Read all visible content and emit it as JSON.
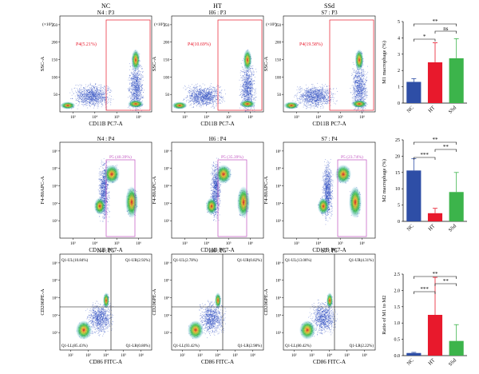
{
  "group_headers": [
    "NC",
    "HT",
    "SSd"
  ],
  "flow_rows": [
    {
      "row": "P3",
      "panels": [
        {
          "title": "N4 : P3",
          "gate_label": "P4(5.21%)"
        },
        {
          "title": "H6 : P3",
          "gate_label": "P4(10.69%)"
        },
        {
          "title": "S7 : P3",
          "gate_label": "P4(19.58%)"
        }
      ],
      "xlabel": "CD11B PC7-A",
      "ylabel": "SSC-A",
      "exponent_label": "(×10³)",
      "yticks": [
        "50",
        "100",
        "150",
        "200",
        "250"
      ],
      "xticks": [
        "10³",
        "10⁴",
        "10⁵",
        "10⁶"
      ]
    },
    {
      "row": "P4",
      "panels": [
        {
          "title": "N4 : P4",
          "gate_label": "P5 (40.39%)"
        },
        {
          "title": "H6 : P4",
          "gate_label": "P5 (35.39%)"
        },
        {
          "title": "S7 : P4",
          "gate_label": "P5 (23.74%)"
        }
      ],
      "xlabel": "CD11B PC7-A",
      "ylabel": "F4-80APC-A",
      "yticks": [
        "10²",
        "10³",
        "10⁴",
        "10⁵",
        "10⁶"
      ],
      "xticks": [
        "10³",
        "10⁴",
        "10⁵",
        "10⁶"
      ]
    },
    {
      "row": "P5",
      "panels": [
        {
          "title": "N4 : P5",
          "quadrants": [
            "Q1-UL(10.84%)",
            "Q1-UR(2.92%)",
            "Q1-LL(85.43%)",
            "Q1-LR(0.80%)"
          ]
        },
        {
          "title": "H6 : P5",
          "quadrants": [
            "Q1-UL(2.78%)",
            "Q1-UR(0.82%)",
            "Q1-LL(93.42%)",
            "Q1-LR(2.98%)"
          ]
        },
        {
          "title": "S7 : P5",
          "quadrants": [
            "Q1-UL(13.06%)",
            "Q1-UR(4.31%)",
            "Q1-LL(80.42%)",
            "Q1-LR(2.22%)"
          ]
        }
      ],
      "xlabel": "CD86 FITC-A",
      "ylabel": "CD206PE-A",
      "yticks": [
        "10²",
        "10³",
        "10⁴",
        "10⁵",
        "10⁶"
      ],
      "xticks": [
        "10²",
        "10³",
        "10⁴",
        "10⁵",
        "10⁶"
      ]
    }
  ],
  "colors": {
    "NC": "#2e4ea6",
    "HT": "#e8192c",
    "SSd": "#3cb44b",
    "gate_p3": "#e8192c",
    "gate_p4": "#c050c0",
    "quad": "#000000"
  },
  "chart_data": [
    {
      "type": "bar",
      "categories": [
        "NC",
        "HT",
        "SSd"
      ],
      "values": [
        1.3,
        2.5,
        2.75
      ],
      "errors": [
        0.2,
        1.2,
        1.2
      ],
      "ylabel": "M1 macrophage (%)",
      "ylim": [
        0,
        5
      ],
      "yticks": [
        0,
        1,
        2,
        3,
        4,
        5
      ],
      "significance": [
        {
          "from": "NC",
          "to": "HT",
          "label": "*"
        },
        {
          "from": "HT",
          "to": "SSd",
          "label": "ns"
        },
        {
          "from": "NC",
          "to": "SSd",
          "label": "**"
        }
      ]
    },
    {
      "type": "bar",
      "categories": [
        "NC",
        "HT",
        "SSd"
      ],
      "values": [
        15.6,
        2.5,
        9.0
      ],
      "errors": [
        3.6,
        1.5,
        6.0
      ],
      "ylabel": "M2 macrophage (%)",
      "ylim": [
        0,
        25
      ],
      "yticks": [
        0,
        5,
        10,
        15,
        20,
        25
      ],
      "significance": [
        {
          "from": "NC",
          "to": "HT",
          "label": "***"
        },
        {
          "from": "HT",
          "to": "SSd",
          "label": "**"
        },
        {
          "from": "NC",
          "to": "SSd",
          "label": "**"
        }
      ]
    },
    {
      "type": "bar",
      "categories": [
        "NC",
        "HT",
        "SSd"
      ],
      "values": [
        0.08,
        1.25,
        0.45
      ],
      "errors": [
        0.02,
        1.15,
        0.5
      ],
      "ylabel": "Ratio of M1 to M2",
      "ylim": [
        0,
        2.5
      ],
      "yticks": [
        0.0,
        0.5,
        1.0,
        1.5,
        2.0,
        2.5
      ],
      "significance": [
        {
          "from": "NC",
          "to": "HT",
          "label": "***"
        },
        {
          "from": "HT",
          "to": "SSd",
          "label": "**"
        },
        {
          "from": "NC",
          "to": "SSd",
          "label": "**"
        }
      ]
    }
  ]
}
